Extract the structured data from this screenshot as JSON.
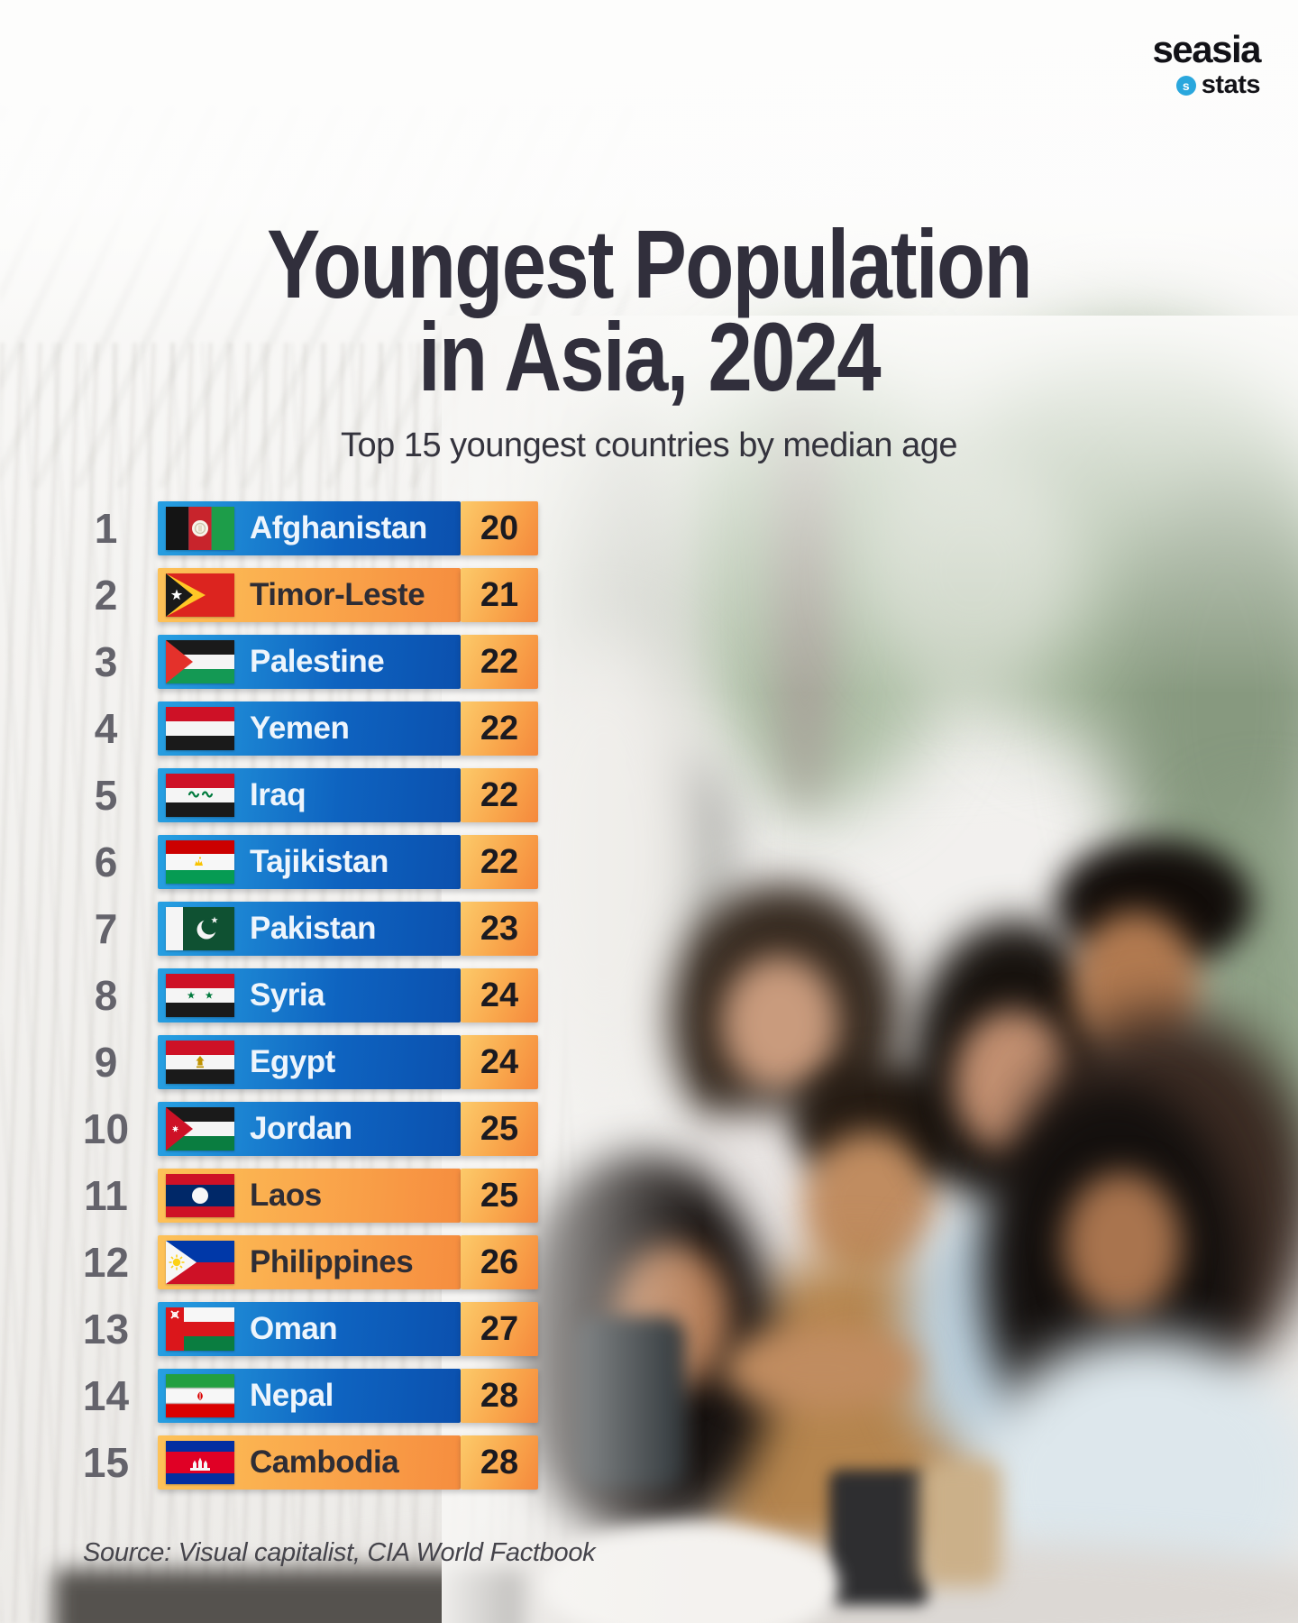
{
  "logo": {
    "brand": "seasia",
    "subbrand": "stats",
    "icon": "seasia-stats-globe-icon",
    "accent_color": "#2aa7dd"
  },
  "header": {
    "title_line1": "Youngest Population",
    "title_line2": "in Asia, 2024",
    "subtitle": "Top 15 youngest countries by median age"
  },
  "source_note": "Source: Visual capitalist, CIA World Factbook",
  "colors": {
    "title_text": "#312f3c",
    "rank_text": "#64636b",
    "bar_blue_start": "#27a0e2",
    "bar_blue_end": "#0b50ae",
    "bar_orange_start": "#fdc258",
    "bar_orange_end": "#f68d3f",
    "age_box_start": "#fcca6a",
    "age_box_end": "#f5883c",
    "country_text_on_blue": "#eef5fc",
    "country_text_on_orange": "#2e2d35",
    "age_text": "#1b1a20"
  },
  "chart_data": {
    "type": "bar",
    "orientation": "horizontal",
    "title": "Youngest Population in Asia, 2024",
    "subtitle": "Top 15 youngest countries by median age",
    "value_label": "Median age (years)",
    "legend": "none",
    "categories": [
      "Afghanistan",
      "Timor-Leste",
      "Palestine",
      "Yemen",
      "Iraq",
      "Tajikistan",
      "Pakistan",
      "Syria",
      "Egypt",
      "Jordan",
      "Laos",
      "Philippines",
      "Oman",
      "Nepal",
      "Cambodia"
    ],
    "values": [
      20,
      21,
      22,
      22,
      22,
      22,
      23,
      24,
      24,
      25,
      25,
      26,
      27,
      28,
      28
    ],
    "rows": [
      {
        "rank": 1,
        "country": "Afghanistan",
        "value": 20,
        "bar_style": "blue",
        "flag": "afghanistan"
      },
      {
        "rank": 2,
        "country": "Timor-Leste",
        "value": 21,
        "bar_style": "orange",
        "flag": "timor-leste"
      },
      {
        "rank": 3,
        "country": "Palestine",
        "value": 22,
        "bar_style": "blue",
        "flag": "palestine"
      },
      {
        "rank": 4,
        "country": "Yemen",
        "value": 22,
        "bar_style": "blue",
        "flag": "yemen"
      },
      {
        "rank": 5,
        "country": "Iraq",
        "value": 22,
        "bar_style": "blue",
        "flag": "iraq"
      },
      {
        "rank": 6,
        "country": "Tajikistan",
        "value": 22,
        "bar_style": "blue",
        "flag": "tajikistan"
      },
      {
        "rank": 7,
        "country": "Pakistan",
        "value": 23,
        "bar_style": "blue",
        "flag": "pakistan"
      },
      {
        "rank": 8,
        "country": "Syria",
        "value": 24,
        "bar_style": "blue",
        "flag": "syria"
      },
      {
        "rank": 9,
        "country": "Egypt",
        "value": 24,
        "bar_style": "blue",
        "flag": "egypt"
      },
      {
        "rank": 10,
        "country": "Jordan",
        "value": 25,
        "bar_style": "blue",
        "flag": "jordan"
      },
      {
        "rank": 11,
        "country": "Laos",
        "value": 25,
        "bar_style": "orange",
        "flag": "laos"
      },
      {
        "rank": 12,
        "country": "Philippines",
        "value": 26,
        "bar_style": "orange",
        "flag": "philippines"
      },
      {
        "rank": 13,
        "country": "Oman",
        "value": 27,
        "bar_style": "blue",
        "flag": "oman"
      },
      {
        "rank": 14,
        "country": "Nepal",
        "value": 28,
        "bar_style": "blue",
        "flag": "iran"
      },
      {
        "rank": 15,
        "country": "Cambodia",
        "value": 28,
        "bar_style": "orange",
        "flag": "cambodia"
      }
    ]
  }
}
